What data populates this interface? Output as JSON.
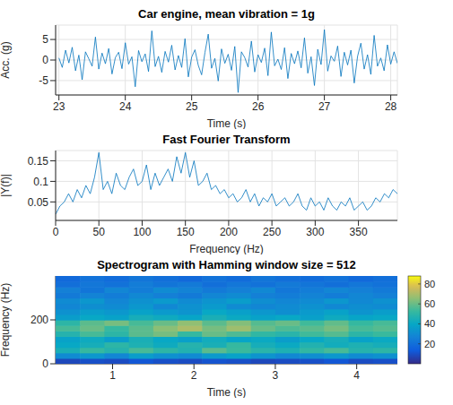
{
  "chart_data": [
    {
      "type": "line",
      "title": "Car engine, mean vibration = 1g",
      "xlabel": "Time (s)",
      "ylabel": "Acc. (g)",
      "color": "#0072bd",
      "grid": true,
      "xlim": [
        22.95,
        28.1
      ],
      "xticks": [
        23,
        24,
        25,
        26,
        27,
        28
      ],
      "ylim": [
        -8.5,
        8.5
      ],
      "yticks": [
        -5,
        0,
        5
      ],
      "x": [
        23.0,
        23.05,
        23.1,
        23.15,
        23.2,
        23.25,
        23.3,
        23.35,
        23.4,
        23.45,
        23.5,
        23.55,
        23.6,
        23.65,
        23.7,
        23.75,
        23.8,
        23.85,
        23.9,
        23.95,
        24.0,
        24.05,
        24.1,
        24.15,
        24.2,
        24.25,
        24.3,
        24.35,
        24.4,
        24.45,
        24.5,
        24.55,
        24.6,
        24.65,
        24.7,
        24.75,
        24.8,
        24.85,
        24.9,
        24.95,
        25.0,
        25.05,
        25.1,
        25.15,
        25.2,
        25.25,
        25.3,
        25.35,
        25.4,
        25.45,
        25.5,
        25.55,
        25.6,
        25.65,
        25.7,
        25.75,
        25.8,
        25.85,
        25.9,
        25.95,
        26.0,
        26.05,
        26.1,
        26.15,
        26.2,
        26.25,
        26.3,
        26.35,
        26.4,
        26.45,
        26.5,
        26.55,
        26.6,
        26.65,
        26.7,
        26.75,
        26.8,
        26.85,
        26.9,
        26.95,
        27.0,
        27.05,
        27.1,
        27.15,
        27.2,
        27.25,
        27.3,
        27.35,
        27.4,
        27.45,
        27.5,
        27.55,
        27.6,
        27.65,
        27.7,
        27.75,
        27.8,
        27.85,
        27.9,
        27.95,
        28.0,
        28.05,
        28.1
      ],
      "values": [
        0.5,
        -1.8,
        2.4,
        -0.7,
        3.1,
        -2.6,
        1.2,
        -4.8,
        2.0,
        0.3,
        -1.5,
        5.6,
        -2.2,
        1.7,
        -0.9,
        2.8,
        -3.4,
        0.6,
        1.9,
        -2.1,
        4.2,
        -1.0,
        0.8,
        -6.5,
        2.3,
        -0.4,
        1.5,
        -2.8,
        7.1,
        -1.6,
        0.9,
        -3.0,
        2.1,
        -0.5,
        3.6,
        -2.4,
        1.1,
        -1.8,
        5.2,
        -4.1,
        0.7,
        2.5,
        -1.3,
        -3.6,
        1.8,
        6.3,
        -2.0,
        0.4,
        -5.1,
        2.7,
        -0.8,
        1.4,
        -2.5,
        3.3,
        -7.9,
        2.0,
        0.6,
        -1.7,
        4.6,
        -2.9,
        1.3,
        -0.6,
        2.9,
        -3.8,
        6.8,
        -1.4,
        0.2,
        -2.3,
        3.0,
        -4.5,
        1.6,
        -0.9,
        2.2,
        -1.9,
        5.4,
        -3.2,
        0.8,
        -6.2,
        2.6,
        -1.1,
        7.4,
        -2.7,
        1.0,
        -0.3,
        3.4,
        -4.0,
        1.9,
        -1.2,
        2.4,
        -5.6,
        0.9,
        4.1,
        -2.2,
        1.3,
        -3.5,
        6.0,
        -1.5,
        0.5,
        -2.6,
        3.7,
        -1.0,
        2.0,
        -0.8
      ]
    },
    {
      "type": "line",
      "title": "Fast Fourier Transform",
      "xlabel": "Frequency (Hz)",
      "ylabel": "|Y(f)|",
      "color": "#0072bd",
      "grid": true,
      "xlim": [
        0,
        395
      ],
      "xticks": [
        0,
        50,
        100,
        150,
        200,
        250,
        300,
        350
      ],
      "ylim": [
        0.005,
        0.175
      ],
      "yticks": [
        0.05,
        0.1,
        0.15
      ],
      "x": [
        0,
        5,
        10,
        15,
        20,
        25,
        30,
        35,
        40,
        45,
        50,
        55,
        60,
        65,
        70,
        75,
        80,
        85,
        90,
        95,
        100,
        105,
        110,
        115,
        120,
        125,
        130,
        135,
        140,
        145,
        150,
        155,
        160,
        165,
        170,
        175,
        180,
        185,
        190,
        195,
        200,
        205,
        210,
        215,
        220,
        225,
        230,
        235,
        240,
        245,
        250,
        255,
        260,
        265,
        270,
        275,
        280,
        285,
        290,
        295,
        300,
        305,
        310,
        315,
        320,
        325,
        330,
        335,
        340,
        345,
        350,
        355,
        360,
        365,
        370,
        375,
        380,
        385,
        390,
        395
      ],
      "values": [
        0.02,
        0.04,
        0.05,
        0.07,
        0.05,
        0.08,
        0.06,
        0.09,
        0.07,
        0.11,
        0.17,
        0.08,
        0.1,
        0.07,
        0.12,
        0.09,
        0.08,
        0.11,
        0.13,
        0.09,
        0.1,
        0.14,
        0.08,
        0.12,
        0.09,
        0.11,
        0.13,
        0.1,
        0.16,
        0.12,
        0.17,
        0.11,
        0.15,
        0.09,
        0.1,
        0.12,
        0.08,
        0.09,
        0.07,
        0.08,
        0.06,
        0.07,
        0.05,
        0.06,
        0.08,
        0.05,
        0.07,
        0.04,
        0.06,
        0.05,
        0.07,
        0.04,
        0.05,
        0.06,
        0.04,
        0.05,
        0.07,
        0.04,
        0.03,
        0.06,
        0.04,
        0.05,
        0.03,
        0.06,
        0.04,
        0.03,
        0.05,
        0.04,
        0.06,
        0.03,
        0.04,
        0.05,
        0.03,
        0.04,
        0.06,
        0.05,
        0.07,
        0.06,
        0.08,
        0.07
      ]
    },
    {
      "type": "heatmap",
      "title": "Spectrogram with Hamming window size = 512",
      "xlabel": "Time (s)",
      "ylabel": "Frequency (Hz)",
      "grid": false,
      "xlim": [
        0.3,
        4.5
      ],
      "xticks": [
        1,
        2,
        3,
        4
      ],
      "ylim": [
        0,
        400
      ],
      "yticks": [
        0,
        200
      ],
      "x": [
        0.45,
        0.75,
        1.05,
        1.35,
        1.65,
        1.95,
        2.25,
        2.55,
        2.85,
        3.15,
        3.45,
        3.75,
        4.05,
        4.35
      ],
      "y": [
        12.5,
        37.5,
        62.5,
        87.5,
        112.5,
        137.5,
        162.5,
        187.5,
        212.5,
        237.5,
        262.5,
        287.5,
        312.5,
        337.5,
        362.5,
        387.5
      ],
      "cells": [
        [
          8,
          10,
          9,
          12,
          10,
          9,
          11,
          10,
          8,
          9,
          10,
          12,
          9,
          10
        ],
        [
          30,
          34,
          28,
          36,
          32,
          30,
          35,
          38,
          33,
          29,
          31,
          34,
          30,
          32
        ],
        [
          45,
          52,
          48,
          55,
          50,
          47,
          58,
          53,
          49,
          46,
          51,
          55,
          48,
          50
        ],
        [
          40,
          44,
          50,
          46,
          42,
          48,
          45,
          52,
          44,
          41,
          47,
          43,
          46,
          44
        ],
        [
          38,
          42,
          36,
          45,
          40,
          37,
          43,
          39,
          41,
          36,
          40,
          44,
          38,
          41
        ],
        [
          48,
          55,
          50,
          58,
          62,
          52,
          60,
          56,
          51,
          49,
          54,
          57,
          50,
          53
        ],
        [
          55,
          60,
          52,
          58,
          65,
          70,
          62,
          68,
          60,
          56,
          58,
          62,
          55,
          57
        ],
        [
          50,
          58,
          62,
          55,
          60,
          66,
          58,
          64,
          57,
          60,
          54,
          59,
          52,
          55
        ],
        [
          36,
          40,
          38,
          44,
          42,
          39,
          45,
          41,
          38,
          40,
          37,
          42,
          39,
          40
        ],
        [
          32,
          36,
          34,
          38,
          35,
          33,
          40,
          37,
          34,
          31,
          35,
          38,
          33,
          36
        ],
        [
          28,
          31,
          30,
          34,
          29,
          32,
          35,
          30,
          28,
          30,
          32,
          29,
          31,
          30
        ],
        [
          30,
          34,
          28,
          32,
          35,
          30,
          33,
          36,
          31,
          28,
          30,
          34,
          29,
          32
        ],
        [
          24,
          27,
          25,
          29,
          26,
          24,
          28,
          30,
          26,
          25,
          27,
          25,
          28,
          26
        ],
        [
          26,
          22,
          28,
          25,
          30,
          27,
          24,
          26,
          29,
          23,
          25,
          28,
          26,
          24
        ],
        [
          20,
          23,
          21,
          25,
          22,
          24,
          20,
          23,
          21,
          24,
          22,
          20,
          23,
          21
        ],
        [
          18,
          21,
          19,
          22,
          20,
          18,
          21,
          19,
          22,
          20,
          19,
          21,
          18,
          20
        ]
      ],
      "color_range": [
        0,
        88
      ],
      "color_ticks": [
        20,
        40,
        60,
        80
      ]
    }
  ]
}
